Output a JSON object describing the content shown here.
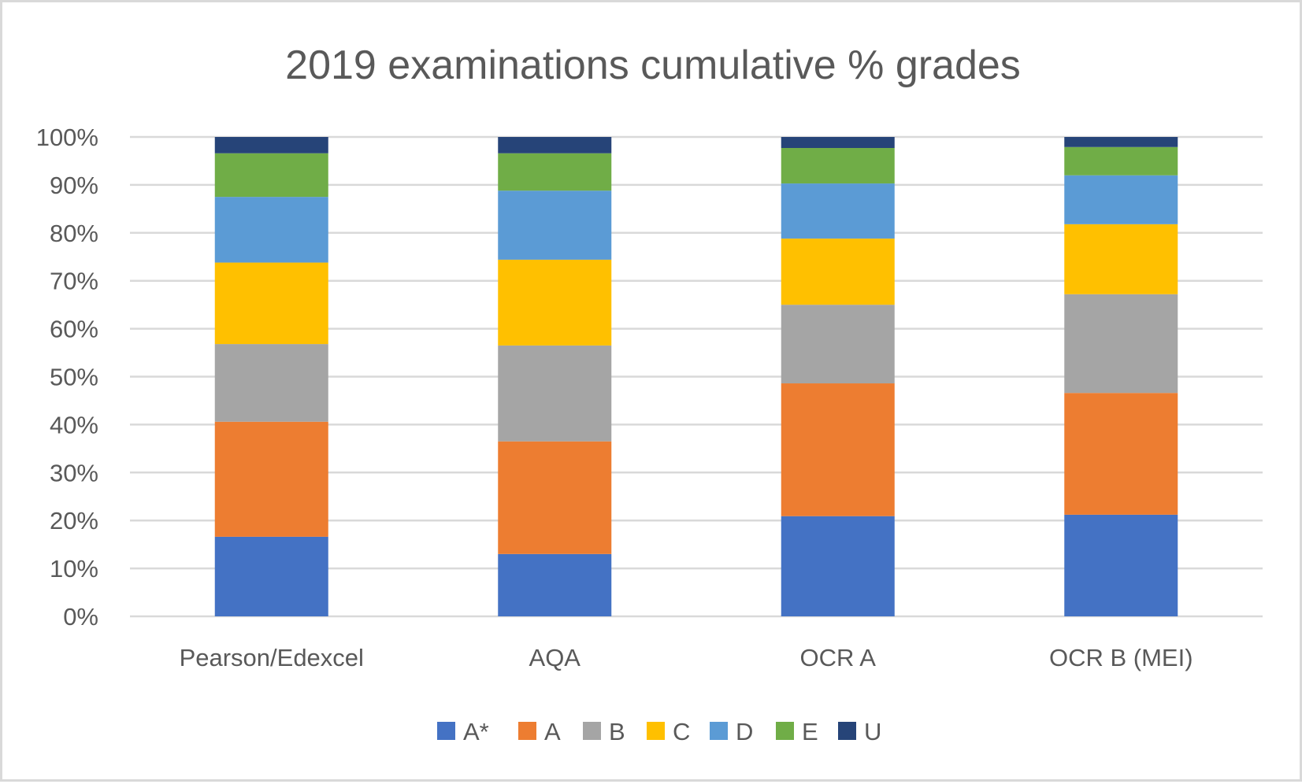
{
  "chart_data": {
    "type": "bar",
    "stacked": true,
    "cumulative": true,
    "title": "2019 examinations cumulative % grades",
    "xlabel": "",
    "ylabel": "",
    "ylim": [
      0,
      100
    ],
    "y_ticks": [
      0,
      10,
      20,
      30,
      40,
      50,
      60,
      70,
      80,
      90,
      100
    ],
    "y_tick_labels": [
      "0%",
      "10%",
      "20%",
      "30%",
      "40%",
      "50%",
      "60%",
      "70%",
      "80%",
      "90%",
      "100%"
    ],
    "grid": true,
    "legend_position": "bottom",
    "categories": [
      "Pearson/Edexcel",
      "AQA",
      "OCR A",
      "OCR B (MEI)"
    ],
    "cumulative_values_note": "Top edge of each grade segment (cumulative %)",
    "series": [
      {
        "name": "A*",
        "color": "#4472c4",
        "cumulative": [
          16.6,
          13.0,
          20.9,
          21.2
        ],
        "values": [
          16.6,
          13.0,
          20.9,
          21.2
        ]
      },
      {
        "name": "A",
        "color": "#ed7d31",
        "cumulative": [
          40.6,
          36.5,
          48.6,
          46.6
        ],
        "values": [
          24.0,
          23.5,
          27.7,
          25.4
        ]
      },
      {
        "name": "B",
        "color": "#a5a5a5",
        "cumulative": [
          56.8,
          56.5,
          65.0,
          67.2
        ],
        "values": [
          16.2,
          20.0,
          16.4,
          20.6
        ]
      },
      {
        "name": "C",
        "color": "#ffc000",
        "cumulative": [
          73.8,
          74.4,
          78.8,
          81.8
        ],
        "values": [
          17.0,
          17.9,
          13.8,
          14.6
        ]
      },
      {
        "name": "D",
        "color": "#5b9bd5",
        "cumulative": [
          87.5,
          88.8,
          90.3,
          92.0
        ],
        "values": [
          13.7,
          14.4,
          11.5,
          10.2
        ]
      },
      {
        "name": "E",
        "color": "#70ad47",
        "cumulative": [
          96.6,
          96.6,
          97.7,
          97.9
        ],
        "values": [
          9.1,
          7.8,
          7.4,
          5.9
        ]
      },
      {
        "name": "U",
        "color": "#264478",
        "cumulative": [
          100,
          100,
          100,
          100
        ],
        "values": [
          3.4,
          3.4,
          2.3,
          2.1
        ]
      }
    ]
  }
}
